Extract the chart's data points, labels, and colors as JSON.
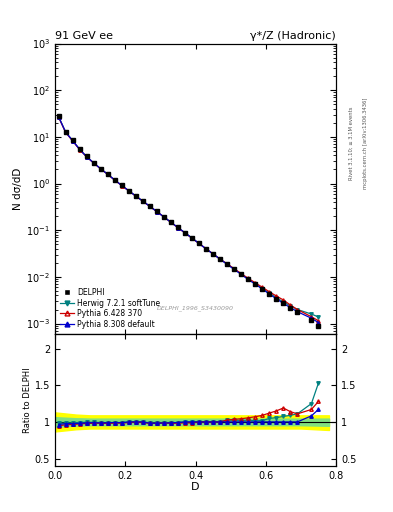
{
  "title_left": "91 GeV ee",
  "title_right": "γ*/Z (Hadronic)",
  "ylabel_main": "N dσ/dD",
  "ylabel_ratio": "Ratio to DELPHI",
  "xlabel": "D",
  "watermark": "DELPHI_1996_S3430090",
  "right_label_top": "Rivet 3.1.10; ≥ 3.1M events",
  "right_label_bot": "mcplots.cern.ch [arXiv:1306.3436]",
  "data_x": [
    0.01,
    0.03,
    0.05,
    0.07,
    0.09,
    0.11,
    0.13,
    0.15,
    0.17,
    0.19,
    0.21,
    0.23,
    0.25,
    0.27,
    0.29,
    0.31,
    0.33,
    0.35,
    0.37,
    0.39,
    0.41,
    0.43,
    0.45,
    0.47,
    0.49,
    0.51,
    0.53,
    0.55,
    0.57,
    0.59,
    0.61,
    0.63,
    0.65,
    0.67,
    0.69,
    0.73,
    0.75
  ],
  "data_y": [
    28.0,
    13.0,
    8.5,
    5.5,
    3.8,
    2.8,
    2.1,
    1.6,
    1.2,
    0.92,
    0.7,
    0.54,
    0.42,
    0.33,
    0.255,
    0.195,
    0.15,
    0.115,
    0.088,
    0.068,
    0.052,
    0.04,
    0.031,
    0.024,
    0.0185,
    0.0145,
    0.0113,
    0.0088,
    0.007,
    0.0055,
    0.0043,
    0.0034,
    0.0027,
    0.0022,
    0.0018,
    0.0012,
    0.0009
  ],
  "herwig_x": [
    0.01,
    0.03,
    0.05,
    0.07,
    0.09,
    0.11,
    0.13,
    0.15,
    0.17,
    0.19,
    0.21,
    0.23,
    0.25,
    0.27,
    0.29,
    0.31,
    0.33,
    0.35,
    0.37,
    0.39,
    0.41,
    0.43,
    0.45,
    0.47,
    0.49,
    0.51,
    0.53,
    0.55,
    0.57,
    0.59,
    0.61,
    0.63,
    0.65,
    0.67,
    0.69,
    0.73,
    0.75
  ],
  "herwig_y": [
    27.5,
    12.8,
    8.4,
    5.45,
    3.78,
    2.78,
    2.08,
    1.58,
    1.19,
    0.91,
    0.7,
    0.54,
    0.42,
    0.325,
    0.252,
    0.193,
    0.148,
    0.114,
    0.088,
    0.068,
    0.052,
    0.04,
    0.031,
    0.024,
    0.019,
    0.0148,
    0.0115,
    0.009,
    0.0071,
    0.0056,
    0.0045,
    0.0036,
    0.0029,
    0.0024,
    0.002,
    0.0016,
    0.00138
  ],
  "pythia6_x": [
    0.01,
    0.03,
    0.05,
    0.07,
    0.09,
    0.11,
    0.13,
    0.15,
    0.17,
    0.19,
    0.21,
    0.23,
    0.25,
    0.27,
    0.29,
    0.31,
    0.33,
    0.35,
    0.37,
    0.39,
    0.41,
    0.43,
    0.45,
    0.47,
    0.49,
    0.51,
    0.53,
    0.55,
    0.57,
    0.59,
    0.61,
    0.63,
    0.65,
    0.67,
    0.69,
    0.73,
    0.75
  ],
  "pythia6_y": [
    26.5,
    12.5,
    8.2,
    5.35,
    3.72,
    2.75,
    2.06,
    1.57,
    1.18,
    0.905,
    0.695,
    0.538,
    0.418,
    0.323,
    0.25,
    0.192,
    0.147,
    0.113,
    0.087,
    0.067,
    0.052,
    0.04,
    0.031,
    0.024,
    0.019,
    0.015,
    0.0118,
    0.0093,
    0.0075,
    0.006,
    0.0048,
    0.0039,
    0.0032,
    0.0025,
    0.002,
    0.0014,
    0.00115
  ],
  "pythia8_x": [
    0.01,
    0.03,
    0.05,
    0.07,
    0.09,
    0.11,
    0.13,
    0.15,
    0.17,
    0.19,
    0.21,
    0.23,
    0.25,
    0.27,
    0.29,
    0.31,
    0.33,
    0.35,
    0.37,
    0.39,
    0.41,
    0.43,
    0.45,
    0.47,
    0.49,
    0.51,
    0.53,
    0.55,
    0.57,
    0.59,
    0.61,
    0.63,
    0.65,
    0.67,
    0.69,
    0.73,
    0.75
  ],
  "pythia8_y": [
    27.0,
    12.7,
    8.3,
    5.4,
    3.75,
    2.77,
    2.07,
    1.58,
    1.19,
    0.91,
    0.7,
    0.54,
    0.42,
    0.324,
    0.251,
    0.192,
    0.148,
    0.114,
    0.088,
    0.068,
    0.052,
    0.04,
    0.031,
    0.024,
    0.0185,
    0.0145,
    0.0113,
    0.0088,
    0.007,
    0.0055,
    0.0043,
    0.0034,
    0.0027,
    0.0022,
    0.0018,
    0.0013,
    0.00105
  ],
  "data_yerr_lo": [
    0.8,
    0.4,
    0.25,
    0.18,
    0.13,
    0.09,
    0.07,
    0.055,
    0.04,
    0.03,
    0.022,
    0.017,
    0.013,
    0.01,
    0.008,
    0.006,
    0.005,
    0.0038,
    0.003,
    0.0023,
    0.0018,
    0.0014,
    0.0011,
    0.0009,
    0.0007,
    0.00055,
    0.00043,
    0.00034,
    0.00027,
    0.00022,
    0.00017,
    0.00014,
    0.00011,
    9e-05,
    7e-05,
    5e-05,
    4e-05
  ],
  "data_yerr_hi": [
    0.8,
    0.4,
    0.25,
    0.18,
    0.13,
    0.09,
    0.07,
    0.055,
    0.04,
    0.03,
    0.022,
    0.017,
    0.013,
    0.01,
    0.008,
    0.006,
    0.005,
    0.0038,
    0.003,
    0.0023,
    0.0018,
    0.0014,
    0.0011,
    0.0009,
    0.0007,
    0.00055,
    0.00043,
    0.00034,
    0.00027,
    0.00022,
    0.00017,
    0.00014,
    0.00011,
    9e-05,
    7e-05,
    5e-05,
    4e-05
  ],
  "band_x": [
    0.0,
    0.02,
    0.04,
    0.06,
    0.08,
    0.1,
    0.12,
    0.14,
    0.16,
    0.18,
    0.2,
    0.22,
    0.24,
    0.26,
    0.28,
    0.3,
    0.32,
    0.34,
    0.36,
    0.38,
    0.4,
    0.42,
    0.44,
    0.46,
    0.48,
    0.5,
    0.52,
    0.54,
    0.56,
    0.58,
    0.6,
    0.62,
    0.64,
    0.66,
    0.68,
    0.7,
    0.72,
    0.74,
    0.76,
    0.78
  ],
  "band_yellow_lo": [
    0.87,
    0.88,
    0.89,
    0.9,
    0.905,
    0.91,
    0.91,
    0.91,
    0.91,
    0.91,
    0.91,
    0.91,
    0.91,
    0.91,
    0.91,
    0.91,
    0.91,
    0.91,
    0.91,
    0.91,
    0.91,
    0.91,
    0.91,
    0.91,
    0.91,
    0.91,
    0.91,
    0.91,
    0.91,
    0.91,
    0.91,
    0.91,
    0.91,
    0.91,
    0.91,
    0.91,
    0.905,
    0.9,
    0.895,
    0.89
  ],
  "band_yellow_hi": [
    1.13,
    1.12,
    1.11,
    1.1,
    1.095,
    1.09,
    1.09,
    1.09,
    1.09,
    1.09,
    1.09,
    1.09,
    1.09,
    1.09,
    1.09,
    1.09,
    1.09,
    1.09,
    1.09,
    1.09,
    1.09,
    1.09,
    1.09,
    1.09,
    1.09,
    1.09,
    1.09,
    1.09,
    1.09,
    1.09,
    1.09,
    1.09,
    1.09,
    1.09,
    1.09,
    1.09,
    1.09,
    1.09,
    1.09,
    1.09
  ],
  "band_green_lo": [
    0.935,
    0.94,
    0.945,
    0.95,
    0.952,
    0.955,
    0.955,
    0.955,
    0.955,
    0.955,
    0.955,
    0.955,
    0.955,
    0.955,
    0.955,
    0.955,
    0.955,
    0.955,
    0.955,
    0.955,
    0.955,
    0.955,
    0.955,
    0.955,
    0.955,
    0.955,
    0.955,
    0.955,
    0.955,
    0.955,
    0.955,
    0.955,
    0.955,
    0.955,
    0.955,
    0.955,
    0.953,
    0.951,
    0.949,
    0.947
  ],
  "band_green_hi": [
    1.065,
    1.06,
    1.055,
    1.05,
    1.048,
    1.045,
    1.045,
    1.045,
    1.045,
    1.045,
    1.045,
    1.045,
    1.045,
    1.045,
    1.045,
    1.045,
    1.045,
    1.045,
    1.045,
    1.045,
    1.045,
    1.045,
    1.045,
    1.045,
    1.045,
    1.045,
    1.045,
    1.045,
    1.045,
    1.045,
    1.045,
    1.045,
    1.045,
    1.045,
    1.045,
    1.045,
    1.045,
    1.045,
    1.045,
    1.045
  ],
  "herwig_ratio": [
    0.982,
    0.985,
    0.988,
    0.991,
    0.995,
    0.993,
    0.99,
    0.988,
    0.992,
    0.989,
    1.0,
    1.0,
    1.0,
    0.985,
    0.988,
    0.99,
    0.987,
    0.991,
    1.0,
    1.0,
    1.0,
    1.0,
    1.0,
    1.0,
    1.027,
    1.021,
    1.018,
    1.025,
    1.014,
    1.018,
    1.047,
    1.059,
    1.074,
    1.09,
    1.11,
    1.25,
    1.53
  ],
  "pythia6_ratio": [
    0.946,
    0.962,
    0.965,
    0.973,
    0.979,
    0.982,
    0.981,
    0.981,
    0.983,
    0.984,
    0.993,
    0.996,
    0.995,
    0.979,
    0.98,
    0.985,
    0.98,
    0.983,
    0.989,
    0.985,
    1.0,
    1.0,
    1.0,
    1.0,
    1.027,
    1.034,
    1.044,
    1.056,
    1.071,
    1.09,
    1.12,
    1.15,
    1.19,
    1.14,
    1.11,
    1.17,
    1.28
  ],
  "pythia8_ratio": [
    0.964,
    0.977,
    0.976,
    0.982,
    0.987,
    0.989,
    0.986,
    0.988,
    0.992,
    0.989,
    1.0,
    1.0,
    1.0,
    0.982,
    0.984,
    0.985,
    0.987,
    0.991,
    1.0,
    1.0,
    1.0,
    1.0,
    1.0,
    1.0,
    1.0,
    1.0,
    1.0,
    1.0,
    1.0,
    1.0,
    1.0,
    1.0,
    1.0,
    1.0,
    1.0,
    1.083,
    1.17
  ],
  "herwig_color": "#008080",
  "pythia6_color": "#cc0000",
  "pythia8_color": "#0000cc",
  "data_color": "#000000",
  "legend_labels": [
    "DELPHI",
    "Herwig 7.2.1 softTune",
    "Pythia 6.428 370",
    "Pythia 8.308 default"
  ],
  "xlim": [
    0.0,
    0.8
  ],
  "ylim_main_log": [
    0.0006,
    1000
  ],
  "ylim_ratio": [
    0.4,
    2.2
  ],
  "ratio_yticks": [
    0.5,
    1.0,
    1.5,
    2.0
  ]
}
